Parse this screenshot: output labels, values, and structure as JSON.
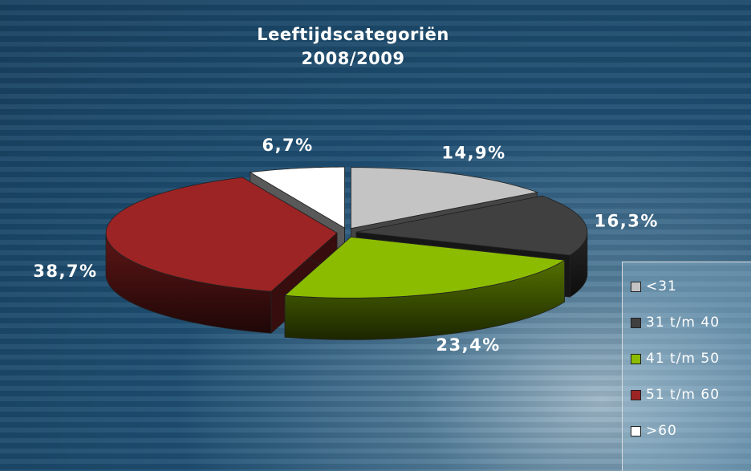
{
  "chart_data": {
    "type": "pie3d",
    "title": "Leeftijdscategoriën\n2008/2009",
    "categories": [
      "<31",
      "31 t/m 40",
      "41 t/m 50",
      "51 t/m 60",
      ">60"
    ],
    "values": [
      14.9,
      16.3,
      23.4,
      38.7,
      6.7
    ],
    "value_labels": [
      "14,9%",
      "16,3%",
      "23,4%",
      "38,7%",
      "6,7%"
    ],
    "colors": [
      "#c4c4c4",
      "#404040",
      "#8cbc00",
      "#9c2424",
      "#ffffff"
    ],
    "legend": "right"
  }
}
